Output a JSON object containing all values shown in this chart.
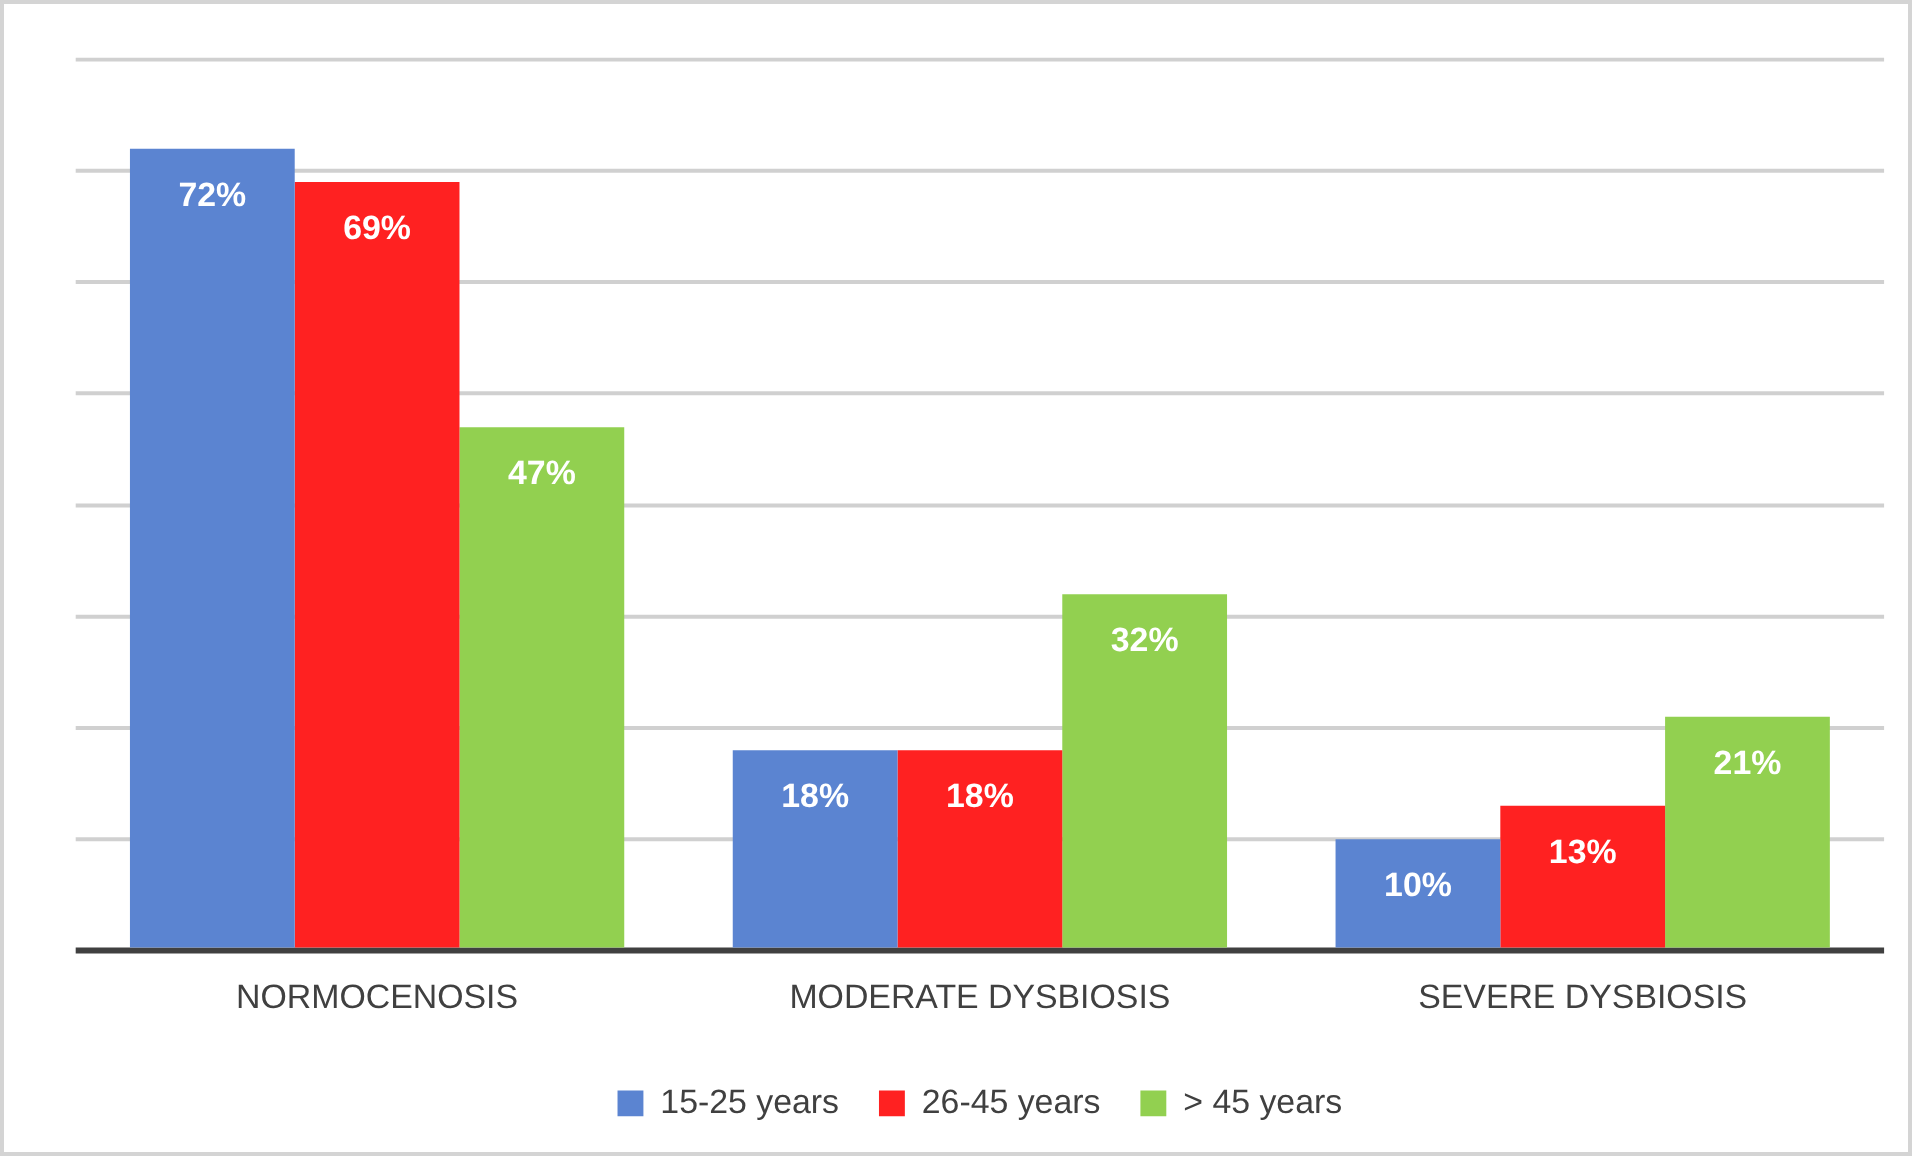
{
  "chart_data": {
    "type": "bar",
    "categories": [
      "NORMOCENOSIS",
      "MODERATE DYSBIOSIS",
      "SEVERE DYSBIOSIS"
    ],
    "series": [
      {
        "name": "15-25 years",
        "color": "#5b84d1",
        "values": [
          72,
          18,
          10
        ],
        "value_labels": [
          "72%",
          "18%",
          "10%"
        ]
      },
      {
        "name": "26-45 years",
        "color": "#ff2121",
        "values": [
          69,
          18,
          13
        ],
        "value_labels": [
          "69%",
          "18%",
          "13%"
        ]
      },
      {
        "name": "> 45 years",
        "color": "#92d050",
        "values": [
          47,
          32,
          21
        ],
        "value_labels": [
          "47%",
          "32%",
          "21%"
        ]
      }
    ],
    "tick_labels": "x",
    "grid": "y",
    "legend": "bottom"
  }
}
